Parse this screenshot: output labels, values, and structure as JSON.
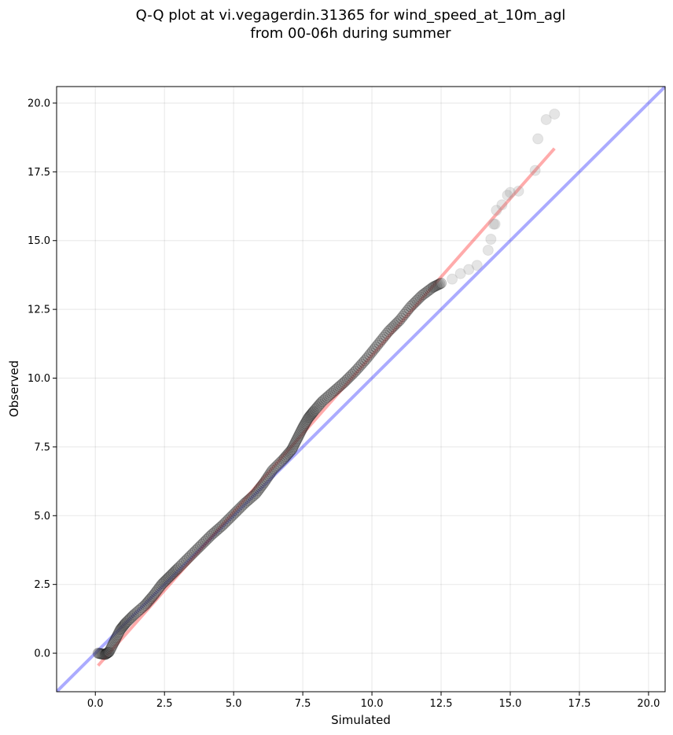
{
  "chart_data": {
    "type": "scatter",
    "title_lines": [
      "Q-Q plot at vi.vegagerdin.31365 for wind_speed_at_10m_agl",
      "from 00-06h during summer"
    ],
    "xlabel": "Simulated",
    "ylabel": "Observed",
    "xlim": [
      -1.4,
      20.6
    ],
    "ylim": [
      -1.4,
      20.6
    ],
    "xticks": [
      0.0,
      2.5,
      5.0,
      7.5,
      10.0,
      12.5,
      15.0,
      17.5,
      20.0
    ],
    "yticks": [
      0.0,
      2.5,
      5.0,
      7.5,
      10.0,
      12.5,
      15.0,
      17.5,
      20.0
    ],
    "tick_labels": [
      "0.0",
      "2.5",
      "5.0",
      "7.5",
      "10.0",
      "12.5",
      "15.0",
      "17.5",
      "20.0"
    ],
    "grid": true,
    "reference_line": {
      "description": "1:1 line",
      "slope": 1,
      "intercept": 0,
      "color": "#0000ff"
    },
    "fit_line": {
      "x": [
        0.1,
        16.6
      ],
      "y": [
        -0.45,
        18.35
      ],
      "color": "#ff0000"
    },
    "core_points": {
      "x": [
        0.1,
        0.35,
        0.5,
        0.7,
        0.9,
        1.1,
        1.4,
        1.8,
        2.1,
        2.4,
        2.7,
        3.0,
        3.4,
        3.8,
        4.2,
        4.6,
        5.0,
        5.4,
        5.8,
        6.1,
        6.4,
        6.8,
        7.1,
        7.3,
        7.5,
        7.7,
        7.9,
        8.2,
        8.6,
        9.0,
        9.4,
        9.8,
        10.2,
        10.6,
        11.0,
        11.4,
        11.8,
        12.2,
        12.5
      ],
      "y": [
        0.0,
        -0.05,
        0.05,
        0.45,
        0.85,
        1.1,
        1.4,
        1.75,
        2.1,
        2.5,
        2.8,
        3.1,
        3.5,
        3.9,
        4.3,
        4.65,
        5.05,
        5.45,
        5.8,
        6.2,
        6.65,
        7.05,
        7.4,
        7.8,
        8.2,
        8.55,
        8.8,
        9.15,
        9.5,
        9.85,
        10.25,
        10.7,
        11.2,
        11.7,
        12.1,
        12.6,
        13.0,
        13.3,
        13.45
      ]
    },
    "tail_points": {
      "x": [
        12.9,
        13.2,
        13.5,
        13.8,
        14.2,
        14.3,
        14.4,
        14.45,
        14.5,
        14.7,
        14.9,
        15.0,
        15.3,
        15.9,
        16.0,
        16.3,
        16.6
      ],
      "y": [
        13.6,
        13.8,
        13.95,
        14.1,
        14.65,
        15.05,
        15.6,
        15.6,
        16.1,
        16.3,
        16.65,
        16.75,
        16.8,
        17.55,
        18.7,
        19.4,
        19.6
      ]
    }
  }
}
